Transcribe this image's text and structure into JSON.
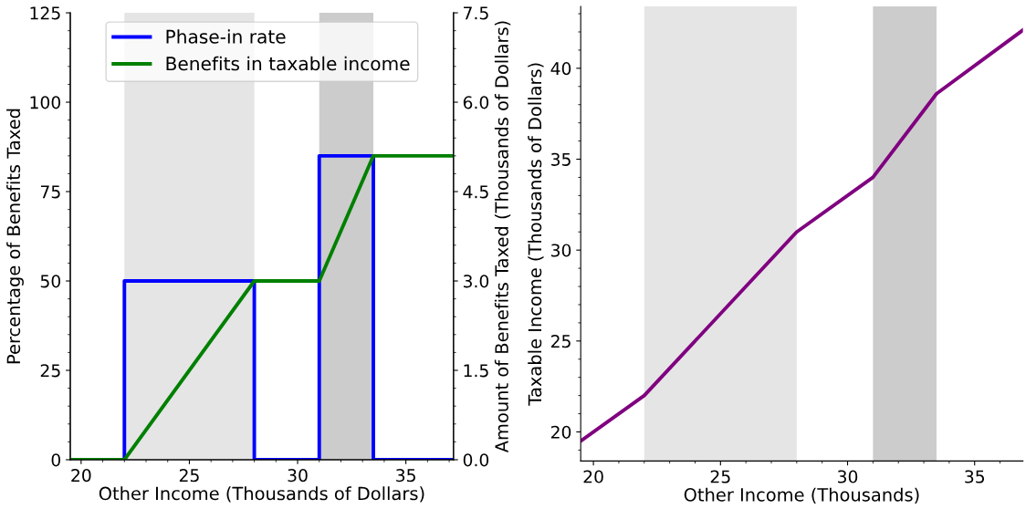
{
  "chart_data": [
    {
      "type": "line",
      "xlabel": "Other Income (Thousands of Dollars)",
      "ylabel": "Percentage of Benefits Taxed",
      "y2label": "Amount of Benefits Taxed (Thousands of Dollars)",
      "xlim": [
        19.5,
        37.2
      ],
      "xticks": [
        20,
        25,
        30,
        35
      ],
      "ylim": [
        0,
        125
      ],
      "yticks": [
        0,
        25,
        50,
        75,
        100,
        125
      ],
      "y2lim": [
        0,
        7.5
      ],
      "y2ticks": [
        {
          "value": 0,
          "label": "0.0"
        },
        1.5,
        {
          "value": 3,
          "label": "3.0"
        },
        4.5,
        {
          "value": 6,
          "label": "6.0"
        },
        7.5
      ],
      "series": [
        {
          "name": "Phase-in rate",
          "type": "line",
          "color": "#0000ff",
          "x": [
            19.5,
            22,
            22,
            28,
            28,
            31,
            31,
            33.5,
            33.5,
            37.2
          ],
          "values": [
            0,
            0,
            50,
            50,
            0,
            0,
            85,
            85,
            0,
            0
          ]
        },
        {
          "name": "Benefits in taxable income",
          "type": "line",
          "color": "#008000",
          "axis": "y2",
          "x": [
            19.5,
            22,
            28,
            31,
            33.5,
            37.2
          ],
          "values": [
            0,
            0,
            3.0,
            3.0,
            5.1,
            5.1
          ]
        }
      ],
      "bands": [
        {
          "axis": "x",
          "from": 22,
          "to": 28,
          "color": "#e5e5e5"
        },
        {
          "axis": "x",
          "from": 31,
          "to": 33.5,
          "color": "#cccccc"
        }
      ],
      "legend": "top"
    },
    {
      "type": "line",
      "xlabel": "Other Income (Thousands)",
      "ylabel": "Taxable Income (Thousands of Dollars)",
      "xlim": [
        19.5,
        36.9
      ],
      "xticks": [
        20,
        25,
        30,
        35
      ],
      "ylim": [
        18.4,
        43.4
      ],
      "yticks": [
        20,
        25,
        30,
        35,
        40
      ],
      "x": [
        19.5,
        22,
        28,
        31,
        33.5,
        36.9
      ],
      "values": [
        19.5,
        22,
        31,
        34,
        38.6,
        42.1
      ],
      "color": "#800080",
      "bands": [
        {
          "axis": "x",
          "from": 22,
          "to": 28,
          "color": "#e5e5e5"
        },
        {
          "axis": "x",
          "from": 31,
          "to": 33.5,
          "color": "#cccccc"
        }
      ]
    }
  ]
}
